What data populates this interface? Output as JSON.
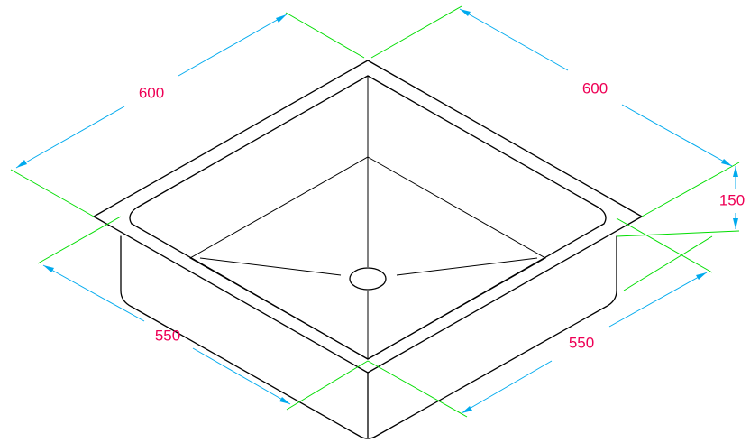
{
  "colors": {
    "background": "#ffffff",
    "outline": "#000000",
    "extension_lines": "#00dd00",
    "dimension_lines": "#00aaee",
    "dimension_text": "#ee0055"
  },
  "dimensions": {
    "top_left_width": "600",
    "top_right_depth": "600",
    "height": "150",
    "bottom_left_width": "550",
    "bottom_right_depth": "550"
  }
}
